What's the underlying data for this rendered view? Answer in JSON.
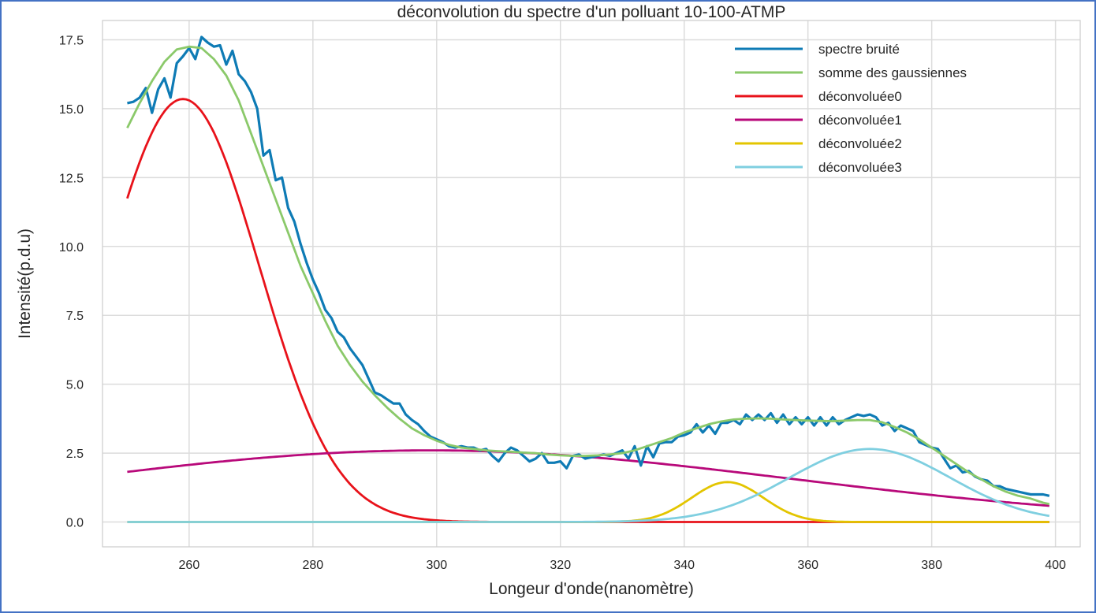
{
  "chart_data": {
    "type": "line",
    "title": "déconvolution du spectre d'un polluant 10-100-ATMP",
    "xlabel": "Longeur d'onde(nanomètre)",
    "ylabel": "Intensité(p.d.u)",
    "xlim": [
      246,
      404
    ],
    "ylim": [
      -0.9,
      18.2
    ],
    "x_ticks": [
      260,
      280,
      300,
      320,
      340,
      360,
      380,
      400
    ],
    "y_ticks": [
      0.0,
      2.5,
      5.0,
      7.5,
      10.0,
      12.5,
      15.0,
      17.5
    ],
    "x_tick_labels": [
      "260",
      "280",
      "300",
      "320",
      "340",
      "360",
      "380",
      "400"
    ],
    "y_tick_labels": [
      "0.0",
      "2.5",
      "5.0",
      "7.5",
      "10.0",
      "12.5",
      "15.0",
      "17.5"
    ],
    "grid": true,
    "legend_position": "top-right",
    "x_range": [
      250,
      399
    ],
    "series": [
      {
        "name": "spectre bruité",
        "color": "#0e7bb5",
        "points": [
          [
            250,
            15.2
          ],
          [
            251,
            15.25
          ],
          [
            252,
            15.4
          ],
          [
            253,
            15.75
          ],
          [
            254,
            14.85
          ],
          [
            255,
            15.7
          ],
          [
            256,
            16.1
          ],
          [
            257,
            15.4
          ],
          [
            258,
            16.65
          ],
          [
            259,
            16.9
          ],
          [
            260,
            17.2
          ],
          [
            261,
            16.8
          ],
          [
            262,
            17.6
          ],
          [
            263,
            17.4
          ],
          [
            264,
            17.25
          ],
          [
            265,
            17.3
          ],
          [
            266,
            16.6
          ],
          [
            267,
            17.1
          ],
          [
            268,
            16.25
          ],
          [
            269,
            16.0
          ],
          [
            270,
            15.6
          ],
          [
            271,
            15.0
          ],
          [
            272,
            13.3
          ],
          [
            273,
            13.5
          ],
          [
            274,
            12.4
          ],
          [
            275,
            12.5
          ],
          [
            276,
            11.4
          ],
          [
            277,
            10.9
          ],
          [
            278,
            10.1
          ],
          [
            279,
            9.4
          ],
          [
            280,
            8.8
          ],
          [
            281,
            8.3
          ],
          [
            282,
            7.7
          ],
          [
            283,
            7.4
          ],
          [
            284,
            6.9
          ],
          [
            285,
            6.7
          ],
          [
            286,
            6.3
          ],
          [
            287,
            6.0
          ],
          [
            288,
            5.7
          ],
          [
            289,
            5.2
          ],
          [
            290,
            4.7
          ],
          [
            291,
            4.6
          ],
          [
            292,
            4.45
          ],
          [
            293,
            4.3
          ],
          [
            294,
            4.3
          ],
          [
            295,
            3.9
          ],
          [
            296,
            3.7
          ],
          [
            297,
            3.55
          ],
          [
            298,
            3.3
          ],
          [
            299,
            3.1
          ],
          [
            300,
            3.0
          ],
          [
            301,
            2.9
          ],
          [
            302,
            2.75
          ],
          [
            303,
            2.7
          ],
          [
            304,
            2.75
          ],
          [
            305,
            2.7
          ],
          [
            306,
            2.7
          ],
          [
            307,
            2.6
          ],
          [
            308,
            2.65
          ],
          [
            309,
            2.4
          ],
          [
            310,
            2.2
          ],
          [
            311,
            2.5
          ],
          [
            312,
            2.7
          ],
          [
            313,
            2.6
          ],
          [
            314,
            2.4
          ],
          [
            315,
            2.2
          ],
          [
            316,
            2.3
          ],
          [
            317,
            2.5
          ],
          [
            318,
            2.15
          ],
          [
            319,
            2.15
          ],
          [
            320,
            2.2
          ],
          [
            321,
            1.95
          ],
          [
            322,
            2.4
          ],
          [
            323,
            2.45
          ],
          [
            324,
            2.3
          ],
          [
            325,
            2.35
          ],
          [
            326,
            2.4
          ],
          [
            327,
            2.45
          ],
          [
            328,
            2.4
          ],
          [
            329,
            2.5
          ],
          [
            330,
            2.6
          ],
          [
            331,
            2.3
          ],
          [
            332,
            2.75
          ],
          [
            333,
            2.05
          ],
          [
            334,
            2.75
          ],
          [
            335,
            2.35
          ],
          [
            336,
            2.85
          ],
          [
            337,
            2.9
          ],
          [
            338,
            2.9
          ],
          [
            339,
            3.1
          ],
          [
            340,
            3.15
          ],
          [
            341,
            3.25
          ],
          [
            342,
            3.55
          ],
          [
            343,
            3.25
          ],
          [
            344,
            3.5
          ],
          [
            345,
            3.2
          ],
          [
            346,
            3.6
          ],
          [
            347,
            3.6
          ],
          [
            348,
            3.7
          ],
          [
            349,
            3.55
          ],
          [
            350,
            3.9
          ],
          [
            351,
            3.7
          ],
          [
            352,
            3.9
          ],
          [
            353,
            3.7
          ],
          [
            354,
            3.95
          ],
          [
            355,
            3.6
          ],
          [
            356,
            3.9
          ],
          [
            357,
            3.55
          ],
          [
            358,
            3.8
          ],
          [
            359,
            3.55
          ],
          [
            360,
            3.8
          ],
          [
            361,
            3.5
          ],
          [
            362,
            3.8
          ],
          [
            363,
            3.5
          ],
          [
            364,
            3.8
          ],
          [
            365,
            3.55
          ],
          [
            366,
            3.7
          ],
          [
            367,
            3.8
          ],
          [
            368,
            3.9
          ],
          [
            369,
            3.85
          ],
          [
            370,
            3.9
          ],
          [
            371,
            3.8
          ],
          [
            372,
            3.5
          ],
          [
            373,
            3.6
          ],
          [
            374,
            3.3
          ],
          [
            375,
            3.5
          ],
          [
            376,
            3.4
          ],
          [
            377,
            3.3
          ],
          [
            378,
            2.9
          ],
          [
            379,
            2.8
          ],
          [
            380,
            2.7
          ],
          [
            381,
            2.65
          ],
          [
            382,
            2.3
          ],
          [
            383,
            1.95
          ],
          [
            384,
            2.05
          ],
          [
            385,
            1.8
          ],
          [
            386,
            1.85
          ],
          [
            387,
            1.65
          ],
          [
            388,
            1.55
          ],
          [
            389,
            1.5
          ],
          [
            390,
            1.3
          ],
          [
            391,
            1.3
          ],
          [
            392,
            1.2
          ],
          [
            393,
            1.15
          ],
          [
            394,
            1.1
          ],
          [
            395,
            1.05
          ],
          [
            396,
            1.0
          ],
          [
            397,
            1.0
          ],
          [
            398,
            1.0
          ],
          [
            399,
            0.95
          ]
        ]
      },
      {
        "name": "somme des gaussiennes",
        "color": "#8bc96a",
        "points": [
          [
            250,
            14.3
          ],
          [
            252,
            15.2
          ],
          [
            254,
            16.0
          ],
          [
            256,
            16.7
          ],
          [
            258,
            17.15
          ],
          [
            260,
            17.25
          ],
          [
            262,
            17.2
          ],
          [
            264,
            16.8
          ],
          [
            266,
            16.2
          ],
          [
            268,
            15.3
          ],
          [
            270,
            14.1
          ],
          [
            272,
            12.9
          ],
          [
            274,
            11.7
          ],
          [
            276,
            10.5
          ],
          [
            278,
            9.3
          ],
          [
            280,
            8.3
          ],
          [
            282,
            7.3
          ],
          [
            284,
            6.4
          ],
          [
            286,
            5.7
          ],
          [
            288,
            5.1
          ],
          [
            290,
            4.6
          ],
          [
            292,
            4.15
          ],
          [
            294,
            3.75
          ],
          [
            296,
            3.4
          ],
          [
            298,
            3.15
          ],
          [
            300,
            2.95
          ],
          [
            302,
            2.8
          ],
          [
            304,
            2.7
          ],
          [
            306,
            2.65
          ],
          [
            308,
            2.6
          ],
          [
            310,
            2.57
          ],
          [
            312,
            2.55
          ],
          [
            314,
            2.52
          ],
          [
            316,
            2.5
          ],
          [
            318,
            2.45
          ],
          [
            320,
            2.42
          ],
          [
            322,
            2.4
          ],
          [
            324,
            2.4
          ],
          [
            326,
            2.42
          ],
          [
            328,
            2.45
          ],
          [
            330,
            2.5
          ],
          [
            332,
            2.6
          ],
          [
            334,
            2.75
          ],
          [
            336,
            2.9
          ],
          [
            338,
            3.05
          ],
          [
            340,
            3.25
          ],
          [
            342,
            3.4
          ],
          [
            344,
            3.55
          ],
          [
            346,
            3.65
          ],
          [
            348,
            3.72
          ],
          [
            350,
            3.75
          ],
          [
            352,
            3.76
          ],
          [
            354,
            3.75
          ],
          [
            356,
            3.72
          ],
          [
            358,
            3.7
          ],
          [
            360,
            3.68
          ],
          [
            362,
            3.67
          ],
          [
            364,
            3.66
          ],
          [
            366,
            3.68
          ],
          [
            368,
            3.7
          ],
          [
            370,
            3.7
          ],
          [
            372,
            3.62
          ],
          [
            374,
            3.45
          ],
          [
            376,
            3.25
          ],
          [
            378,
            3.0
          ],
          [
            380,
            2.7
          ],
          [
            382,
            2.4
          ],
          [
            384,
            2.1
          ],
          [
            386,
            1.8
          ],
          [
            388,
            1.55
          ],
          [
            390,
            1.3
          ],
          [
            392,
            1.1
          ],
          [
            394,
            0.95
          ],
          [
            396,
            0.85
          ],
          [
            398,
            0.7
          ],
          [
            399,
            0.65
          ]
        ]
      },
      {
        "name": "déconvoluée0",
        "color": "#e8121a",
        "gaussian": {
          "amplitude": 15.35,
          "center": 259,
          "sigma": 12.3,
          "offset": 0
        }
      },
      {
        "name": "déconvoluée1",
        "color": "#b8097a",
        "gaussian": {
          "amplitude": 2.6,
          "center": 299,
          "sigma": 58,
          "offset": 0
        }
      },
      {
        "name": "déconvoluée2",
        "color": "#e3c500",
        "gaussian": {
          "amplitude": 1.45,
          "center": 347,
          "sigma": 5.8,
          "offset": 0
        }
      },
      {
        "name": "déconvoluée3",
        "color": "#7fcfe0",
        "gaussian": {
          "amplitude": 2.65,
          "center": 370,
          "sigma": 13,
          "offset": 0
        }
      }
    ]
  }
}
